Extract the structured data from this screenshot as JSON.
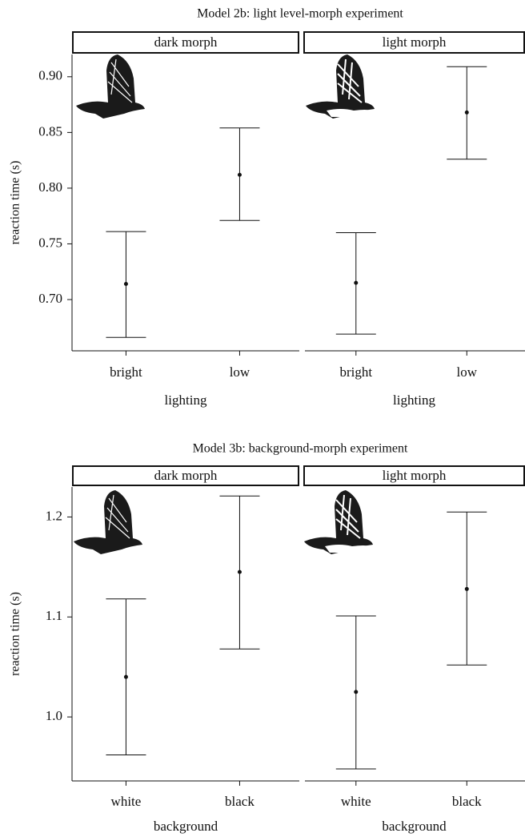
{
  "chart_data": [
    {
      "type": "errorbar",
      "title": "Model 2b: light level-morph experiment",
      "y_label": "reaction time (s)",
      "x_label": "lighting",
      "ylim": [
        0.654,
        0.92
      ],
      "yticks": [
        {
          "value": 0.7,
          "label": "0.70"
        },
        0.75,
        {
          "value": 0.8,
          "label": "0.80"
        },
        0.85,
        {
          "value": 0.9,
          "label": "0.90"
        }
      ],
      "panels": [
        {
          "name": "dark morph",
          "categories": [
            "bright",
            "low"
          ],
          "values": [
            0.714,
            0.812
          ],
          "lower": [
            0.666,
            0.771
          ],
          "upper": [
            0.761,
            0.854
          ]
        },
        {
          "name": "light morph",
          "categories": [
            "bright",
            "low"
          ],
          "values": [
            0.715,
            0.868
          ],
          "lower": [
            0.669,
            0.826
          ],
          "upper": [
            0.76,
            0.909
          ]
        }
      ]
    },
    {
      "type": "errorbar",
      "title": "Model 3b: background-morph experiment",
      "y_label": "reaction time (s)",
      "x_label": "background",
      "ylim": [
        0.936,
        1.23
      ],
      "yticks": [
        {
          "value": 1,
          "label": "1.0"
        },
        1.1,
        1.2
      ],
      "panels": [
        {
          "name": "dark morph",
          "categories": [
            "white",
            "black"
          ],
          "values": [
            1.04,
            1.145
          ],
          "lower": [
            0.962,
            1.068
          ],
          "upper": [
            1.118,
            1.221
          ]
        },
        {
          "name": "light morph",
          "categories": [
            "white",
            "black"
          ],
          "values": [
            1.025,
            1.128
          ],
          "lower": [
            0.948,
            1.052
          ],
          "upper": [
            1.101,
            1.205
          ]
        }
      ]
    }
  ]
}
